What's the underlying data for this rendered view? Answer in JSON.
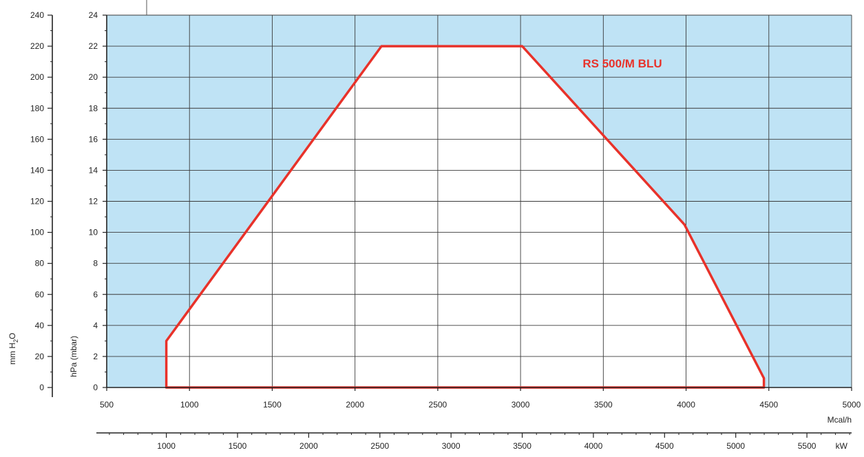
{
  "chart_data": {
    "type": "area",
    "series_label": "RS 500/M BLU",
    "x_axis": {
      "unit": "Mcal/h",
      "range": [
        500,
        5000
      ],
      "ticks": [
        500,
        1000,
        1500,
        2000,
        2500,
        3000,
        3500,
        4000,
        4500,
        5000
      ]
    },
    "x_axis_secondary": {
      "unit": "kW",
      "range": [
        581,
        5814
      ],
      "ticks": [
        1000,
        1500,
        2000,
        2500,
        3000,
        3500,
        4000,
        4500,
        5000,
        5500
      ]
    },
    "y_axis": {
      "unit": "hPa (mbar)",
      "range": [
        0,
        24
      ],
      "ticks": [
        0,
        2,
        4,
        6,
        8,
        10,
        12,
        14,
        16,
        18,
        20,
        22,
        24
      ]
    },
    "y_axis_secondary": {
      "unit_parts": [
        "mm H",
        "2",
        "O"
      ],
      "range": [
        0,
        240
      ],
      "ticks": [
        0,
        20,
        40,
        60,
        80,
        100,
        120,
        140,
        160,
        180,
        200,
        220,
        240
      ]
    },
    "series": [
      {
        "name": "RS 500/M BLU",
        "x": [
          860,
          860,
          2160,
          3010,
          3990,
          4470,
          4470,
          860
        ],
        "y": [
          0,
          3,
          22,
          22,
          10.5,
          0.6,
          0,
          0
        ]
      }
    ],
    "grid": true,
    "colors": {
      "background": "#bfe3f5",
      "area": "#ffffff",
      "line": "#e8322a",
      "grid": "#3a3a3a"
    }
  }
}
